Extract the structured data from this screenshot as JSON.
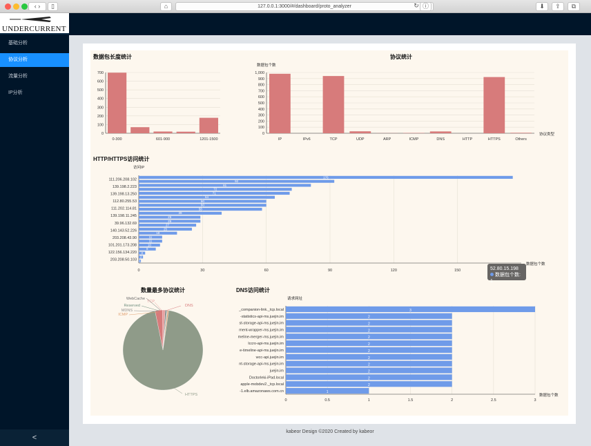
{
  "browser": {
    "url": "127.0.0.1:3000/#/dashboard/proto_analyzer"
  },
  "sidebar": {
    "logo": "UNDERCURRENT",
    "items": [
      {
        "label": "基础分析"
      },
      {
        "label": "协议分析"
      },
      {
        "label": "流量分析"
      },
      {
        "label": "IP分析"
      }
    ],
    "collapse": "<"
  },
  "footer": {
    "text": "kabeor Design ©2020 Created by kabeor"
  },
  "colors": {
    "bar_red": "#d77b7b",
    "bar_blue": "#6f9be9",
    "sidebar": "#001529",
    "active": "#1890ff",
    "pie_main": "#8f9b89"
  },
  "tooltip": {
    "ip": "52.80.15.198",
    "label": "数据包个数: 1"
  },
  "chart_data": [
    {
      "type": "bar",
      "title": "数据包长度统计",
      "categories": [
        "0-300",
        "",
        "601-900",
        "",
        "1201-1500"
      ],
      "values": [
        698,
        70,
        20,
        18,
        178
      ],
      "ylim": [
        0,
        700
      ],
      "yticks": [
        0,
        100,
        200,
        300,
        400,
        500,
        600,
        700
      ]
    },
    {
      "type": "bar",
      "title": "协议统计",
      "ylabel": "数据包个数",
      "xlabel": "协议类型",
      "categories": [
        "IP",
        "IPv6",
        "TCP",
        "UDP",
        "ARP",
        "ICMP",
        "DNS",
        "HTTP",
        "HTTPS",
        "Others"
      ],
      "values": [
        979,
        0,
        942,
        32,
        2,
        5,
        30,
        0,
        925,
        8
      ],
      "ylim": [
        0,
        1000
      ],
      "yticks": [
        0,
        100,
        200,
        300,
        400,
        500,
        600,
        700,
        800,
        900,
        1000
      ],
      "ytick_labels": [
        "0",
        "100",
        "200",
        "300",
        "400",
        "500",
        "600",
        "700",
        "800",
        "900",
        "1,000"
      ]
    },
    {
      "type": "bar",
      "orientation": "horizontal",
      "title": "HTTP/HTTPS访问统计",
      "ylabel": "访问IP",
      "xlabel": "数据包个数",
      "ip_labels": [
        "111.206.208.102",
        "139.198.2.223",
        "139.198.13.250",
        "112.80.255.53",
        "111.202.114.81",
        "139.198.11.245",
        "39.96.132.69",
        "140.143.52.226",
        "203.208.43.90",
        "101.201.173.208",
        "122.156.134.220",
        "203.208.50.103"
      ],
      "values": [
        176,
        92,
        81,
        72,
        71,
        64,
        60,
        60,
        58,
        39,
        29,
        29,
        27,
        25,
        18,
        11,
        11,
        10,
        8,
        3,
        2,
        1
      ],
      "xlim": [
        0,
        180
      ],
      "xticks": [
        0,
        30,
        60,
        90,
        120,
        150
      ]
    },
    {
      "type": "pie",
      "title": "数量最多协议统计",
      "labels": [
        "HTTPS",
        "DNS",
        "TCP",
        "WebCache",
        "Reserved",
        "MDNS",
        "ICMP"
      ],
      "values": [
        925,
        30,
        10,
        4,
        3,
        2,
        5
      ],
      "colors": [
        "#8f9b89",
        "#d77b7b",
        "#e8a0a0",
        "#6a6a6a",
        "#6f8f7f",
        "#909090",
        "#e0a070"
      ]
    },
    {
      "type": "bar",
      "orientation": "horizontal",
      "title": "DNS访问统计",
      "ylabel": "请求网址",
      "xlabel": "数据包个数",
      "categories": [
        "_companion-link._tcp.local",
        "-statistics-api-ms.juejin.im",
        "st-storage-api-ms.juejin.im",
        "ment-wrapper-ms.juejin.im",
        "meline-merger-ms.juejin.im",
        "lccro-api-ms.juejin.im",
        "e-timeline-api-ms.juejin.im",
        "wcc-api.juejin.im",
        "nt-storage-api-ms.juejin.im",
        "juejin.im",
        "Doctorleki-iPad.local",
        "apple-mobdev2._tcp.local",
        "-1.elb.amazonaws.com.cn"
      ],
      "values": [
        3,
        2,
        2,
        2,
        2,
        2,
        2,
        2,
        2,
        2,
        2,
        2,
        1
      ],
      "xlim": [
        0,
        3
      ],
      "xticks": [
        0,
        0.5,
        1,
        1.5,
        2,
        2.5,
        3
      ]
    }
  ]
}
